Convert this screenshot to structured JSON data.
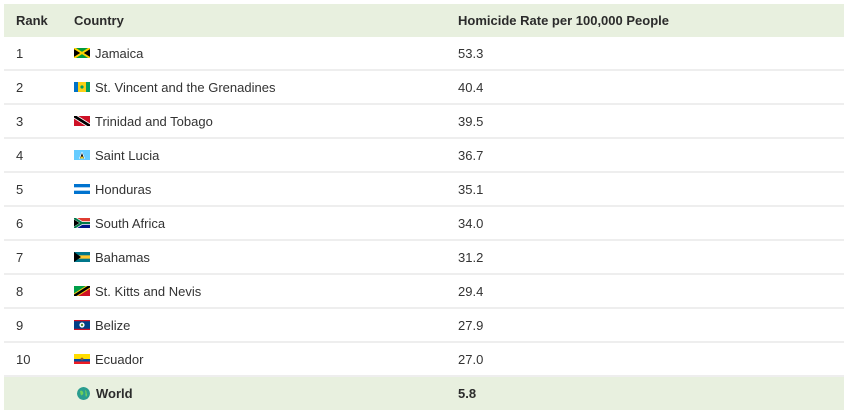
{
  "table": {
    "headers": {
      "rank": "Rank",
      "country": "Country",
      "rate": "Homicide Rate per 100,000 People"
    },
    "rows": [
      {
        "rank": "1",
        "country": "Jamaica",
        "rate": "53.3"
      },
      {
        "rank": "2",
        "country": "St. Vincent and the Grenadines",
        "rate": "40.4"
      },
      {
        "rank": "3",
        "country": "Trinidad and Tobago",
        "rate": "39.5"
      },
      {
        "rank": "4",
        "country": "Saint Lucia",
        "rate": "36.7"
      },
      {
        "rank": "5",
        "country": "Honduras",
        "rate": "35.1"
      },
      {
        "rank": "6",
        "country": "South Africa",
        "rate": "34.0"
      },
      {
        "rank": "7",
        "country": "Bahamas",
        "rate": "31.2"
      },
      {
        "rank": "8",
        "country": "St. Kitts and Nevis",
        "rate": "29.4"
      },
      {
        "rank": "9",
        "country": "Belize",
        "rate": "27.9"
      },
      {
        "rank": "10",
        "country": "Ecuador",
        "rate": "27.0"
      }
    ],
    "footer": {
      "country": "World",
      "rate": "5.8"
    }
  },
  "colors": {
    "header_bg": "#e8f0df",
    "row_border": "#eeeeee",
    "globe": "#2a9d8f"
  }
}
